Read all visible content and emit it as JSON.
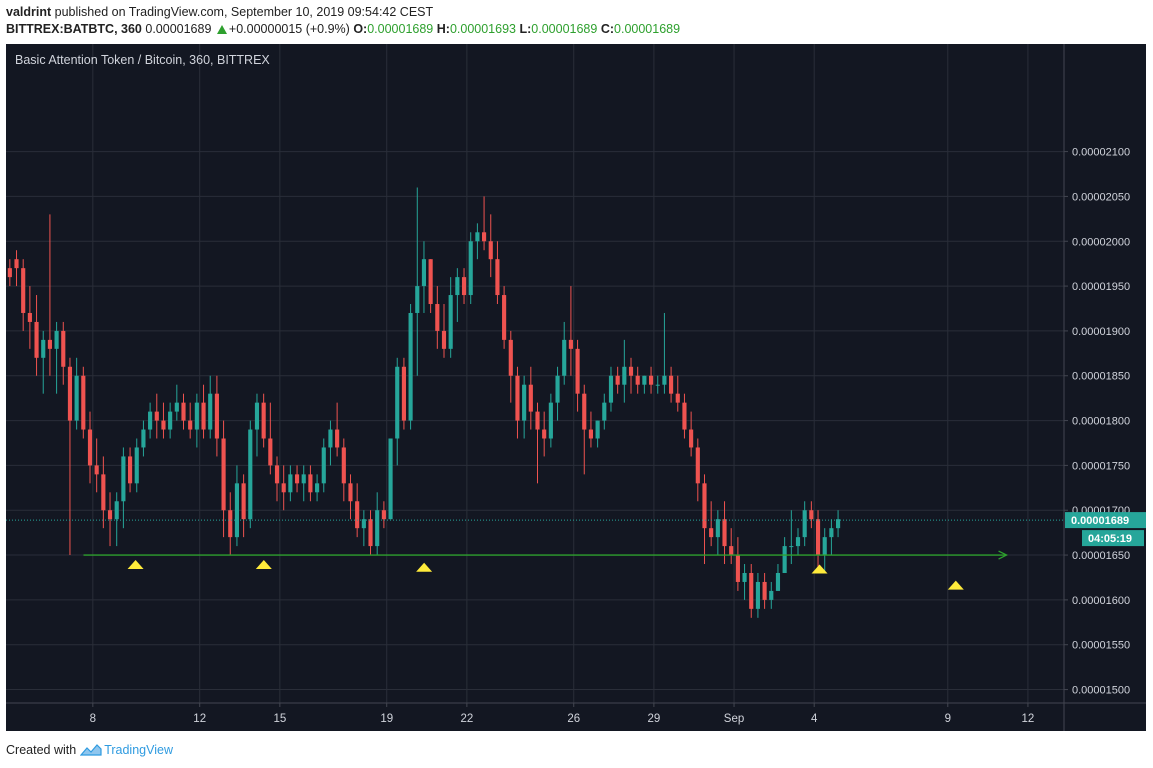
{
  "header": {
    "author": "valdrint",
    "published_text": "published on TradingView.com, September 10, 2019 09:54:42 CEST",
    "symbol": "BITTREX:BATBTC, 360",
    "last_price": "0.00001689",
    "change": "+0.00000015 (+0.9%)",
    "o_label": "O:",
    "o_value": "0.00001689",
    "h_label": "H:",
    "h_value": "0.00001693",
    "l_label": "L:",
    "l_value": "0.00001689",
    "c_label": "C:",
    "c_value": "0.00001689"
  },
  "footer": {
    "created_with": "Created with",
    "brand": "TradingView",
    "logo_icon": "tradingview-logo-icon"
  },
  "chart_data": {
    "type": "candlestick",
    "title": "Basic Attention Token / Bitcoin, 360, BITTREX",
    "ylim": [
      1.485e-05,
      2.22e-05
    ],
    "y_ticks": [
      "0.00001500",
      "0.00001550",
      "0.00001600",
      "0.00001650",
      "0.00001700",
      "0.00001750",
      "0.00001800",
      "0.00001850",
      "0.00001900",
      "0.00001950",
      "0.00002000",
      "0.00002050",
      "0.00002100"
    ],
    "x_ticks": [
      {
        "label": "8",
        "day": 8
      },
      {
        "label": "12",
        "day": 12
      },
      {
        "label": "15",
        "day": 15
      },
      {
        "label": "19",
        "day": 19
      },
      {
        "label": "22",
        "day": 22
      },
      {
        "label": "26",
        "day": 26
      },
      {
        "label": "29",
        "day": 29
      },
      {
        "label": "Sep",
        "day": 32
      },
      {
        "label": "4",
        "day": 35
      },
      {
        "label": "9",
        "day": 40
      },
      {
        "label": "12",
        "day": 43
      }
    ],
    "x_range_days": [
      4.75,
      44.35
    ],
    "current_price": "0.00001689",
    "countdown": "04:05:19",
    "support_level": 1.65e-05,
    "support_from_day": 7.65,
    "support_to_day": 42.2,
    "markers": [
      {
        "day": 9.6,
        "price": 1.64e-05
      },
      {
        "day": 14.4,
        "price": 1.64e-05
      },
      {
        "day": 20.4,
        "price": 1.637e-05
      },
      {
        "day": 35.2,
        "price": 1.635e-05
      },
      {
        "day": 40.3,
        "price": 1.617e-05
      }
    ],
    "candles": [
      [
        1.97e-05,
        1.98e-05,
        1.95e-05,
        1.96e-05
      ],
      [
        1.98e-05,
        1.99e-05,
        1.95e-05,
        1.97e-05
      ],
      [
        1.97e-05,
        1.98e-05,
        1.9e-05,
        1.92e-05
      ],
      [
        1.92e-05,
        1.95e-05,
        1.88e-05,
        1.91e-05
      ],
      [
        1.91e-05,
        1.94e-05,
        1.85e-05,
        1.87e-05
      ],
      [
        1.87e-05,
        1.9e-05,
        1.83e-05,
        1.89e-05
      ],
      [
        1.89e-05,
        2.03e-05,
        1.85e-05,
        1.88e-05
      ],
      [
        1.88e-05,
        1.91e-05,
        1.83e-05,
        1.9e-05
      ],
      [
        1.9e-05,
        1.91e-05,
        1.84e-05,
        1.86e-05
      ],
      [
        1.86e-05,
        1.87e-05,
        1.65e-05,
        1.8e-05
      ],
      [
        1.8e-05,
        1.87e-05,
        1.79e-05,
        1.85e-05
      ],
      [
        1.85e-05,
        1.86e-05,
        1.78e-05,
        1.79e-05
      ],
      [
        1.79e-05,
        1.81e-05,
        1.73e-05,
        1.75e-05
      ],
      [
        1.75e-05,
        1.78e-05,
        1.72e-05,
        1.74e-05
      ],
      [
        1.74e-05,
        1.76e-05,
        1.68e-05,
        1.7e-05
      ],
      [
        1.7e-05,
        1.72e-05,
        1.66e-05,
        1.69e-05
      ],
      [
        1.69e-05,
        1.72e-05,
        1.66e-05,
        1.71e-05
      ],
      [
        1.71e-05,
        1.77e-05,
        1.68e-05,
        1.76e-05
      ],
      [
        1.76e-05,
        1.77e-05,
        1.72e-05,
        1.73e-05
      ],
      [
        1.73e-05,
        1.78e-05,
        1.72e-05,
        1.77e-05
      ],
      [
        1.77e-05,
        1.8e-05,
        1.76e-05,
        1.79e-05
      ],
      [
        1.79e-05,
        1.82e-05,
        1.78e-05,
        1.81e-05
      ],
      [
        1.81e-05,
        1.83e-05,
        1.78e-05,
        1.8e-05
      ],
      [
        1.8e-05,
        1.82e-05,
        1.78e-05,
        1.79e-05
      ],
      [
        1.79e-05,
        1.82e-05,
        1.78e-05,
        1.81e-05
      ],
      [
        1.81e-05,
        1.84e-05,
        1.8e-05,
        1.82e-05
      ],
      [
        1.82e-05,
        1.83e-05,
        1.79e-05,
        1.8e-05
      ],
      [
        1.8e-05,
        1.82e-05,
        1.78e-05,
        1.79e-05
      ],
      [
        1.79e-05,
        1.83e-05,
        1.77e-05,
        1.82e-05
      ],
      [
        1.82e-05,
        1.84e-05,
        1.78e-05,
        1.79e-05
      ],
      [
        1.79e-05,
        1.85e-05,
        1.78e-05,
        1.83e-05
      ],
      [
        1.83e-05,
        1.85e-05,
        1.76e-05,
        1.78e-05
      ],
      [
        1.78e-05,
        1.8e-05,
        1.67e-05,
        1.7e-05
      ],
      [
        1.7e-05,
        1.72e-05,
        1.65e-05,
        1.67e-05
      ],
      [
        1.67e-05,
        1.75e-05,
        1.66e-05,
        1.73e-05
      ],
      [
        1.73e-05,
        1.74e-05,
        1.67e-05,
        1.69e-05
      ],
      [
        1.69e-05,
        1.8e-05,
        1.68e-05,
        1.79e-05
      ],
      [
        1.79e-05,
        1.83e-05,
        1.76e-05,
        1.82e-05
      ],
      [
        1.82e-05,
        1.83e-05,
        1.77e-05,
        1.78e-05
      ],
      [
        1.78e-05,
        1.82e-05,
        1.74e-05,
        1.75e-05
      ],
      [
        1.75e-05,
        1.76e-05,
        1.71e-05,
        1.73e-05
      ],
      [
        1.73e-05,
        1.75e-05,
        1.7e-05,
        1.72e-05
      ],
      [
        1.72e-05,
        1.75e-05,
        1.71e-05,
        1.74e-05
      ],
      [
        1.74e-05,
        1.75e-05,
        1.72e-05,
        1.73e-05
      ],
      [
        1.73e-05,
        1.75e-05,
        1.71e-05,
        1.74e-05
      ],
      [
        1.74e-05,
        1.75e-05,
        1.71e-05,
        1.72e-05
      ],
      [
        1.72e-05,
        1.74e-05,
        1.71e-05,
        1.73e-05
      ],
      [
        1.73e-05,
        1.78e-05,
        1.72e-05,
        1.77e-05
      ],
      [
        1.77e-05,
        1.8e-05,
        1.75e-05,
        1.79e-05
      ],
      [
        1.79e-05,
        1.82e-05,
        1.76e-05,
        1.77e-05
      ],
      [
        1.77e-05,
        1.78e-05,
        1.71e-05,
        1.73e-05
      ],
      [
        1.73e-05,
        1.74e-05,
        1.69e-05,
        1.71e-05
      ],
      [
        1.71e-05,
        1.73e-05,
        1.67e-05,
        1.68e-05
      ],
      [
        1.68e-05,
        1.7e-05,
        1.66e-05,
        1.69e-05
      ],
      [
        1.69e-05,
        1.7e-05,
        1.65e-05,
        1.66e-05
      ],
      [
        1.66e-05,
        1.72e-05,
        1.65e-05,
        1.7e-05
      ],
      [
        1.7e-05,
        1.71e-05,
        1.68e-05,
        1.69e-05
      ],
      [
        1.69e-05,
        1.78e-05,
        1.69e-05,
        1.78e-05
      ],
      [
        1.78e-05,
        1.87e-05,
        1.75e-05,
        1.86e-05
      ],
      [
        1.86e-05,
        1.87e-05,
        1.79e-05,
        1.8e-05
      ],
      [
        1.8e-05,
        1.93e-05,
        1.79e-05,
        1.92e-05
      ],
      [
        1.92e-05,
        2.06e-05,
        1.85e-05,
        1.95e-05
      ],
      [
        1.95e-05,
        2e-05,
        1.92e-05,
        1.98e-05
      ],
      [
        1.98e-05,
        1.98e-05,
        1.92e-05,
        1.93e-05
      ],
      [
        1.93e-05,
        1.95e-05,
        1.88e-05,
        1.9e-05
      ],
      [
        1.9e-05,
        1.93e-05,
        1.87e-05,
        1.88e-05
      ],
      [
        1.88e-05,
        1.96e-05,
        1.87e-05,
        1.94e-05
      ],
      [
        1.94e-05,
        1.97e-05,
        1.91e-05,
        1.96e-05
      ],
      [
        1.96e-05,
        1.97e-05,
        1.93e-05,
        1.94e-05
      ],
      [
        1.94e-05,
        2.01e-05,
        1.93e-05,
        2e-05
      ],
      [
        2e-05,
        2.02e-05,
        1.98e-05,
        2.01e-05
      ],
      [
        2.01e-05,
        2.05e-05,
        1.99e-05,
        2e-05
      ],
      [
        2e-05,
        2.03e-05,
        1.96e-05,
        1.98e-05
      ],
      [
        1.98e-05,
        2e-05,
        1.93e-05,
        1.94e-05
      ],
      [
        1.94e-05,
        1.95e-05,
        1.88e-05,
        1.89e-05
      ],
      [
        1.89e-05,
        1.9e-05,
        1.82e-05,
        1.85e-05
      ],
      [
        1.85e-05,
        1.86e-05,
        1.78e-05,
        1.8e-05
      ],
      [
        1.8e-05,
        1.85e-05,
        1.78e-05,
        1.84e-05
      ],
      [
        1.84e-05,
        1.86e-05,
        1.79e-05,
        1.81e-05
      ],
      [
        1.81e-05,
        1.82e-05,
        1.73e-05,
        1.79e-05
      ],
      [
        1.79e-05,
        1.81e-05,
        1.76e-05,
        1.78e-05
      ],
      [
        1.78e-05,
        1.83e-05,
        1.77e-05,
        1.82e-05
      ],
      [
        1.82e-05,
        1.86e-05,
        1.8e-05,
        1.85e-05
      ],
      [
        1.85e-05,
        1.91e-05,
        1.84e-05,
        1.89e-05
      ],
      [
        1.89e-05,
        1.95e-05,
        1.85e-05,
        1.88e-05
      ],
      [
        1.88e-05,
        1.89e-05,
        1.81e-05,
        1.83e-05
      ],
      [
        1.83e-05,
        1.84e-05,
        1.74e-05,
        1.79e-05
      ],
      [
        1.79e-05,
        1.81e-05,
        1.77e-05,
        1.78e-05
      ],
      [
        1.78e-05,
        1.8e-05,
        1.77e-05,
        1.8e-05
      ],
      [
        1.8e-05,
        1.83e-05,
        1.79e-05,
        1.82e-05
      ],
      [
        1.82e-05,
        1.86e-05,
        1.81e-05,
        1.85e-05
      ],
      [
        1.85e-05,
        1.86e-05,
        1.83e-05,
        1.84e-05
      ],
      [
        1.84e-05,
        1.89e-05,
        1.82e-05,
        1.86e-05
      ],
      [
        1.86e-05,
        1.87e-05,
        1.83e-05,
        1.85e-05
      ],
      [
        1.85e-05,
        1.86e-05,
        1.83e-05,
        1.84e-05
      ],
      [
        1.84e-05,
        1.85e-05,
        1.83e-05,
        1.85e-05
      ],
      [
        1.85e-05,
        1.86e-05,
        1.83e-05,
        1.84e-05
      ],
      [
        1.84e-05,
        1.85e-05,
        1.83e-05,
        1.84e-05
      ],
      [
        1.84e-05,
        1.92e-05,
        1.83e-05,
        1.85e-05
      ],
      [
        1.85e-05,
        1.86e-05,
        1.82e-05,
        1.83e-05
      ],
      [
        1.83e-05,
        1.85e-05,
        1.81e-05,
        1.82e-05
      ],
      [
        1.82e-05,
        1.83e-05,
        1.78e-05,
        1.79e-05
      ],
      [
        1.79e-05,
        1.81e-05,
        1.76e-05,
        1.77e-05
      ],
      [
        1.77e-05,
        1.78e-05,
        1.71e-05,
        1.73e-05
      ],
      [
        1.73e-05,
        1.74e-05,
        1.64e-05,
        1.68e-05
      ],
      [
        1.68e-05,
        1.71e-05,
        1.66e-05,
        1.67e-05
      ],
      [
        1.67e-05,
        1.7e-05,
        1.65e-05,
        1.69e-05
      ],
      [
        1.69e-05,
        1.71e-05,
        1.64e-05,
        1.66e-05
      ],
      [
        1.66e-05,
        1.68e-05,
        1.64e-05,
        1.65e-05
      ],
      [
        1.65e-05,
        1.67e-05,
        1.61e-05,
        1.62e-05
      ],
      [
        1.62e-05,
        1.64e-05,
        1.6e-05,
        1.63e-05
      ],
      [
        1.63e-05,
        1.64e-05,
        1.58e-05,
        1.59e-05
      ],
      [
        1.59e-05,
        1.63e-05,
        1.58e-05,
        1.62e-05
      ],
      [
        1.62e-05,
        1.63e-05,
        1.59e-05,
        1.6e-05
      ],
      [
        1.6e-05,
        1.62e-05,
        1.59e-05,
        1.61e-05
      ],
      [
        1.61e-05,
        1.64e-05,
        1.61e-05,
        1.63e-05
      ],
      [
        1.63e-05,
        1.67e-05,
        1.63e-05,
        1.66e-05
      ],
      [
        1.66e-05,
        1.7e-05,
        1.64e-05,
        1.66e-05
      ],
      [
        1.66e-05,
        1.68e-05,
        1.65e-05,
        1.67e-05
      ],
      [
        1.67e-05,
        1.71e-05,
        1.66e-05,
        1.7e-05
      ],
      [
        1.7e-05,
        1.71e-05,
        1.68e-05,
        1.69e-05
      ],
      [
        1.69e-05,
        1.7e-05,
        1.63e-05,
        1.65e-05
      ],
      [
        1.65e-05,
        1.68e-05,
        1.63e-05,
        1.67e-05
      ],
      [
        1.67e-05,
        1.69e-05,
        1.65e-05,
        1.68e-05
      ],
      [
        1.68e-05,
        1.7e-05,
        1.67e-05,
        1.69e-05
      ]
    ]
  },
  "colors": {
    "background": "#131722",
    "grid": "#2a2e39",
    "up": "#26a69a",
    "down": "#ef5350",
    "axis_text": "#d1d4dc",
    "support_line": "#2ea02e",
    "marker": "#ffeb3b",
    "price_label": "#26a69a"
  }
}
